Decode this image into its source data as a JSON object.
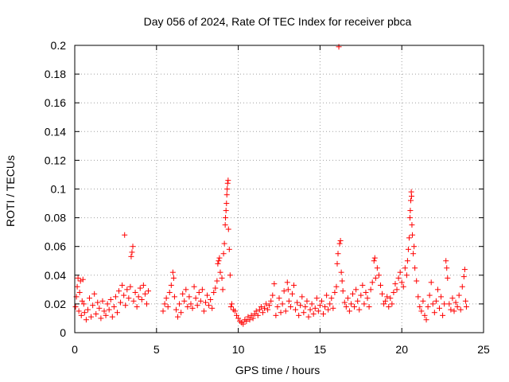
{
  "chart_data": {
    "type": "scatter",
    "title": "Day 056 of 2024, Rate Of TEC Index for receiver pbca",
    "xlabel": "GPS time / hours",
    "ylabel": "ROTI / TECUs",
    "xlim": [
      0,
      25
    ],
    "ylim": [
      0,
      0.2
    ],
    "xticks": [
      0,
      5,
      10,
      15,
      20,
      25
    ],
    "yticks": [
      0,
      0.02,
      0.04,
      0.06,
      0.08,
      0.1,
      0.12,
      0.14,
      0.16,
      0.18,
      0.2
    ],
    "xtick_labels": [
      "0",
      "5",
      "10",
      "15",
      "20",
      "25"
    ],
    "ytick_labels": [
      "0",
      "0.02",
      "0.04",
      "0.06",
      "0.08",
      "0.1",
      "0.12",
      "0.14",
      "0.16",
      "0.18",
      "0.2"
    ],
    "grid": true,
    "marker": "+",
    "color": "#ff0000",
    "series": [
      {
        "name": "ROTI",
        "points": [
          [
            0.05,
            0.018
          ],
          [
            0.1,
            0.025
          ],
          [
            0.15,
            0.032
          ],
          [
            0.2,
            0.038
          ],
          [
            0.25,
            0.015
          ],
          [
            0.3,
            0.028
          ],
          [
            0.35,
            0.036
          ],
          [
            0.4,
            0.012
          ],
          [
            0.45,
            0.022
          ],
          [
            0.5,
            0.037
          ],
          [
            0.55,
            0.02
          ],
          [
            0.6,
            0.014
          ],
          [
            0.7,
            0.009
          ],
          [
            0.8,
            0.016
          ],
          [
            0.9,
            0.024
          ],
          [
            1.0,
            0.011
          ],
          [
            1.1,
            0.019
          ],
          [
            1.2,
            0.027
          ],
          [
            1.3,
            0.013
          ],
          [
            1.4,
            0.021
          ],
          [
            1.5,
            0.017
          ],
          [
            1.6,
            0.01
          ],
          [
            1.7,
            0.022
          ],
          [
            1.8,
            0.015
          ],
          [
            1.9,
            0.012
          ],
          [
            2.0,
            0.02
          ],
          [
            2.1,
            0.016
          ],
          [
            2.2,
            0.023
          ],
          [
            2.3,
            0.011
          ],
          [
            2.4,
            0.018
          ],
          [
            2.5,
            0.025
          ],
          [
            2.6,
            0.014
          ],
          [
            2.7,
            0.029
          ],
          [
            2.8,
            0.021
          ],
          [
            2.9,
            0.033
          ],
          [
            3.0,
            0.026
          ],
          [
            3.05,
            0.068
          ],
          [
            3.1,
            0.019
          ],
          [
            3.2,
            0.03
          ],
          [
            3.3,
            0.024
          ],
          [
            3.4,
            0.032
          ],
          [
            3.45,
            0.053
          ],
          [
            3.5,
            0.056
          ],
          [
            3.55,
            0.06
          ],
          [
            3.6,
            0.022
          ],
          [
            3.7,
            0.028
          ],
          [
            3.8,
            0.018
          ],
          [
            3.9,
            0.025
          ],
          [
            4.0,
            0.031
          ],
          [
            4.1,
            0.023
          ],
          [
            4.2,
            0.033
          ],
          [
            4.3,
            0.027
          ],
          [
            4.4,
            0.02
          ],
          [
            4.5,
            0.029
          ],
          [
            5.4,
            0.015
          ],
          [
            5.5,
            0.02
          ],
          [
            5.6,
            0.024
          ],
          [
            5.7,
            0.018
          ],
          [
            5.8,
            0.028
          ],
          [
            5.9,
            0.033
          ],
          [
            6.0,
            0.042
          ],
          [
            6.05,
            0.038
          ],
          [
            6.1,
            0.025
          ],
          [
            6.2,
            0.016
          ],
          [
            6.3,
            0.011
          ],
          [
            6.4,
            0.02
          ],
          [
            6.5,
            0.014
          ],
          [
            6.6,
            0.027
          ],
          [
            6.7,
            0.022
          ],
          [
            6.8,
            0.03
          ],
          [
            6.9,
            0.018
          ],
          [
            7.0,
            0.025
          ],
          [
            7.1,
            0.02
          ],
          [
            7.2,
            0.017
          ],
          [
            7.3,
            0.032
          ],
          [
            7.4,
            0.024
          ],
          [
            7.5,
            0.019
          ],
          [
            7.6,
            0.028
          ],
          [
            7.7,
            0.022
          ],
          [
            7.8,
            0.03
          ],
          [
            7.9,
            0.015
          ],
          [
            8.0,
            0.021
          ],
          [
            8.1,
            0.026
          ],
          [
            8.2,
            0.019
          ],
          [
            8.3,
            0.023
          ],
          [
            8.4,
            0.017
          ],
          [
            8.5,
            0.028
          ],
          [
            8.6,
            0.031
          ],
          [
            8.7,
            0.036
          ],
          [
            8.75,
            0.048
          ],
          [
            8.8,
            0.05
          ],
          [
            8.85,
            0.052
          ],
          [
            8.9,
            0.042
          ],
          [
            9.0,
            0.038
          ],
          [
            9.05,
            0.03
          ],
          [
            9.1,
            0.055
          ],
          [
            9.15,
            0.062
          ],
          [
            9.2,
            0.075
          ],
          [
            9.22,
            0.08
          ],
          [
            9.25,
            0.085
          ],
          [
            9.28,
            0.09
          ],
          [
            9.3,
            0.096
          ],
          [
            9.32,
            0.1
          ],
          [
            9.35,
            0.104
          ],
          [
            9.38,
            0.106
          ],
          [
            9.4,
            0.072
          ],
          [
            9.45,
            0.058
          ],
          [
            9.5,
            0.04
          ],
          [
            9.55,
            0.018
          ],
          [
            9.6,
            0.02
          ],
          [
            9.7,
            0.016
          ],
          [
            9.8,
            0.015
          ],
          [
            9.9,
            0.012
          ],
          [
            10.0,
            0.01
          ],
          [
            10.1,
            0.008
          ],
          [
            10.2,
            0.007
          ],
          [
            10.3,
            0.006
          ],
          [
            10.4,
            0.009
          ],
          [
            10.5,
            0.008
          ],
          [
            10.6,
            0.011
          ],
          [
            10.7,
            0.009
          ],
          [
            10.8,
            0.012
          ],
          [
            10.9,
            0.01
          ],
          [
            11.0,
            0.013
          ],
          [
            11.1,
            0.015
          ],
          [
            11.2,
            0.012
          ],
          [
            11.3,
            0.016
          ],
          [
            11.4,
            0.018
          ],
          [
            11.5,
            0.014
          ],
          [
            11.6,
            0.017
          ],
          [
            11.7,
            0.02
          ],
          [
            11.8,
            0.016
          ],
          [
            11.9,
            0.019
          ],
          [
            12.0,
            0.022
          ],
          [
            12.1,
            0.026
          ],
          [
            12.2,
            0.034
          ],
          [
            12.3,
            0.012
          ],
          [
            12.4,
            0.018
          ],
          [
            12.5,
            0.024
          ],
          [
            12.6,
            0.014
          ],
          [
            12.7,
            0.02
          ],
          [
            12.8,
            0.029
          ],
          [
            12.9,
            0.015
          ],
          [
            13.0,
            0.035
          ],
          [
            13.05,
            0.03
          ],
          [
            13.1,
            0.022
          ],
          [
            13.2,
            0.018
          ],
          [
            13.3,
            0.027
          ],
          [
            13.4,
            0.033
          ],
          [
            13.5,
            0.016
          ],
          [
            13.6,
            0.021
          ],
          [
            13.7,
            0.012
          ],
          [
            13.8,
            0.019
          ],
          [
            13.9,
            0.025
          ],
          [
            14.0,
            0.014
          ],
          [
            14.1,
            0.018
          ],
          [
            14.2,
            0.022
          ],
          [
            14.3,
            0.011
          ],
          [
            14.4,
            0.016
          ],
          [
            14.5,
            0.02
          ],
          [
            14.6,
            0.013
          ],
          [
            14.7,
            0.017
          ],
          [
            14.8,
            0.024
          ],
          [
            14.9,
            0.015
          ],
          [
            15.0,
            0.019
          ],
          [
            15.1,
            0.022
          ],
          [
            15.2,
            0.013
          ],
          [
            15.3,
            0.018
          ],
          [
            15.4,
            0.026
          ],
          [
            15.5,
            0.016
          ],
          [
            15.6,
            0.02
          ],
          [
            15.7,
            0.024
          ],
          [
            15.8,
            0.017
          ],
          [
            15.9,
            0.028
          ],
          [
            16.0,
            0.032
          ],
          [
            16.05,
            0.048
          ],
          [
            16.1,
            0.055
          ],
          [
            16.15,
            0.199
          ],
          [
            16.2,
            0.062
          ],
          [
            16.25,
            0.064
          ],
          [
            16.3,
            0.042
          ],
          [
            16.35,
            0.036
          ],
          [
            16.4,
            0.029
          ],
          [
            16.5,
            0.021
          ],
          [
            16.6,
            0.018
          ],
          [
            16.7,
            0.024
          ],
          [
            16.8,
            0.015
          ],
          [
            16.9,
            0.02
          ],
          [
            17.0,
            0.027
          ],
          [
            17.1,
            0.018
          ],
          [
            17.2,
            0.03
          ],
          [
            17.3,
            0.022
          ],
          [
            17.4,
            0.016
          ],
          [
            17.5,
            0.026
          ],
          [
            17.6,
            0.033
          ],
          [
            17.7,
            0.02
          ],
          [
            17.8,
            0.028
          ],
          [
            17.9,
            0.024
          ],
          [
            18.0,
            0.018
          ],
          [
            18.1,
            0.03
          ],
          [
            18.2,
            0.035
          ],
          [
            18.3,
            0.05
          ],
          [
            18.35,
            0.052
          ],
          [
            18.4,
            0.038
          ],
          [
            18.5,
            0.045
          ],
          [
            18.6,
            0.04
          ],
          [
            18.7,
            0.033
          ],
          [
            18.8,
            0.027
          ],
          [
            18.9,
            0.02
          ],
          [
            19.0,
            0.022
          ],
          [
            19.1,
            0.025
          ],
          [
            19.2,
            0.018
          ],
          [
            19.3,
            0.024
          ],
          [
            19.4,
            0.02
          ],
          [
            19.5,
            0.028
          ],
          [
            19.6,
            0.034
          ],
          [
            19.7,
            0.03
          ],
          [
            19.8,
            0.038
          ],
          [
            19.9,
            0.042
          ],
          [
            20.0,
            0.035
          ],
          [
            20.1,
            0.032
          ],
          [
            20.2,
            0.045
          ],
          [
            20.3,
            0.04
          ],
          [
            20.35,
            0.05
          ],
          [
            20.4,
            0.058
          ],
          [
            20.45,
            0.066
          ],
          [
            20.5,
            0.08
          ],
          [
            20.52,
            0.085
          ],
          [
            20.55,
            0.092
          ],
          [
            20.58,
            0.098
          ],
          [
            20.6,
            0.095
          ],
          [
            20.62,
            0.075
          ],
          [
            20.65,
            0.068
          ],
          [
            20.7,
            0.055
          ],
          [
            20.75,
            0.06
          ],
          [
            20.8,
            0.045
          ],
          [
            20.9,
            0.036
          ],
          [
            21.0,
            0.025
          ],
          [
            21.1,
            0.018
          ],
          [
            21.2,
            0.015
          ],
          [
            21.3,
            0.022
          ],
          [
            21.4,
            0.012
          ],
          [
            21.5,
            0.009
          ],
          [
            21.6,
            0.018
          ],
          [
            21.7,
            0.026
          ],
          [
            21.8,
            0.035
          ],
          [
            21.9,
            0.02
          ],
          [
            22.0,
            0.014
          ],
          [
            22.1,
            0.022
          ],
          [
            22.2,
            0.03
          ],
          [
            22.3,
            0.017
          ],
          [
            22.4,
            0.025
          ],
          [
            22.5,
            0.012
          ],
          [
            22.6,
            0.02
          ],
          [
            22.7,
            0.05
          ],
          [
            22.75,
            0.045
          ],
          [
            22.8,
            0.038
          ],
          [
            22.9,
            0.02
          ],
          [
            23.0,
            0.016
          ],
          [
            23.1,
            0.024
          ],
          [
            23.2,
            0.015
          ],
          [
            23.3,
            0.021
          ],
          [
            23.4,
            0.018
          ],
          [
            23.5,
            0.026
          ],
          [
            23.6,
            0.016
          ],
          [
            23.7,
            0.032
          ],
          [
            23.8,
            0.039
          ],
          [
            23.85,
            0.044
          ],
          [
            23.9,
            0.022
          ],
          [
            23.95,
            0.018
          ]
        ]
      }
    ]
  }
}
